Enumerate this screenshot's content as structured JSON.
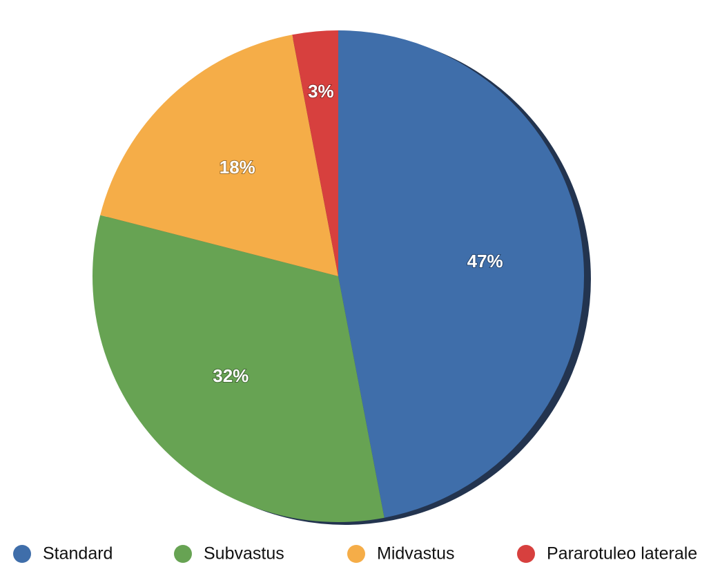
{
  "chart_data": {
    "type": "pie",
    "categories": [
      "Standard",
      "Subvastus",
      "Midvastus",
      "Pararotuleo laterale"
    ],
    "values": [
      47,
      32,
      18,
      3
    ],
    "value_labels": [
      "47%",
      "32%",
      "18%",
      "3%"
    ],
    "colors": [
      "#3f6eaa",
      "#67a353",
      "#f5ad48",
      "#d7403e"
    ],
    "legend": "bottom"
  }
}
